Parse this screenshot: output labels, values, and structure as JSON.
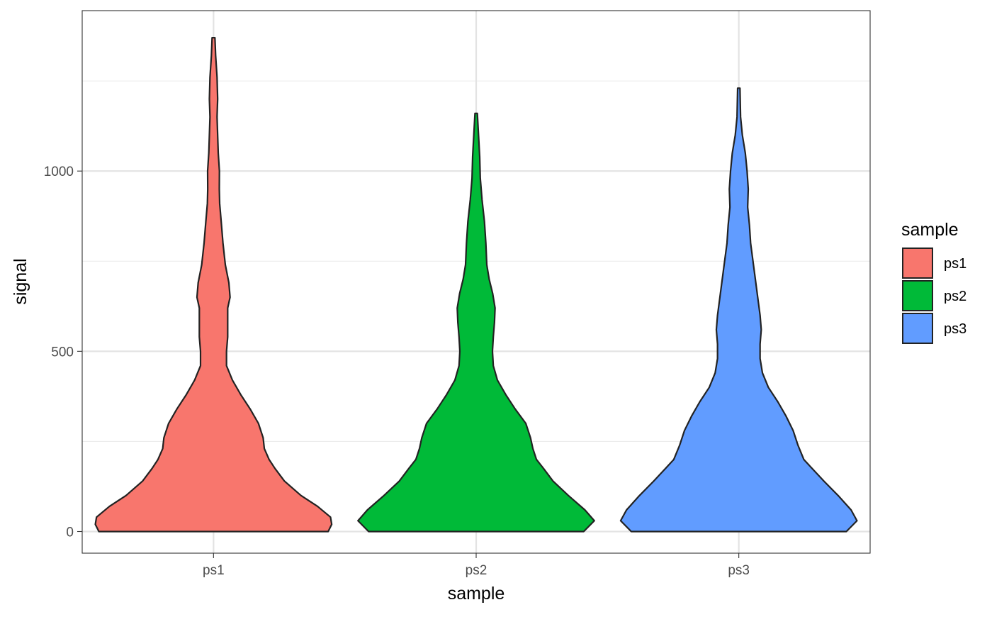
{
  "chart_data": {
    "type": "violin",
    "xlabel": "sample",
    "ylabel": "signal",
    "categories": [
      "ps1",
      "ps2",
      "ps3"
    ],
    "ylim": [
      -60,
      1445
    ],
    "yticks": [
      0,
      500,
      1000
    ],
    "minor_yticks": [
      250,
      750,
      1250
    ],
    "grid": true,
    "legend": {
      "title": "sample",
      "position": "right",
      "entries": [
        "ps1",
        "ps2",
        "ps3"
      ]
    },
    "colors": {
      "ps1": "#F8766D",
      "ps2": "#00BA38",
      "ps3": "#619CFF"
    },
    "series": [
      {
        "name": "ps1",
        "min": 0,
        "max": 1370,
        "density_profile": [
          [
            0,
            0.97
          ],
          [
            20,
            1.0
          ],
          [
            40,
            0.99
          ],
          [
            70,
            0.88
          ],
          [
            100,
            0.74
          ],
          [
            140,
            0.6
          ],
          [
            175,
            0.52
          ],
          [
            200,
            0.47
          ],
          [
            230,
            0.43
          ],
          [
            260,
            0.42
          ],
          [
            300,
            0.38
          ],
          [
            340,
            0.31
          ],
          [
            380,
            0.23
          ],
          [
            420,
            0.16
          ],
          [
            460,
            0.11
          ],
          [
            500,
            0.11
          ],
          [
            540,
            0.12
          ],
          [
            580,
            0.12
          ],
          [
            620,
            0.12
          ],
          [
            650,
            0.14
          ],
          [
            690,
            0.13
          ],
          [
            740,
            0.1
          ],
          [
            800,
            0.08
          ],
          [
            860,
            0.065
          ],
          [
            910,
            0.052
          ],
          [
            950,
            0.049
          ],
          [
            1000,
            0.05
          ],
          [
            1050,
            0.04
          ],
          [
            1100,
            0.035
          ],
          [
            1150,
            0.03
          ],
          [
            1200,
            0.035
          ],
          [
            1260,
            0.03
          ],
          [
            1320,
            0.018
          ],
          [
            1370,
            0.012
          ]
        ]
      },
      {
        "name": "ps2",
        "min": 0,
        "max": 1160,
        "density_profile": [
          [
            0,
            0.91
          ],
          [
            30,
            1.0
          ],
          [
            60,
            0.92
          ],
          [
            100,
            0.78
          ],
          [
            140,
            0.65
          ],
          [
            175,
            0.57
          ],
          [
            200,
            0.51
          ],
          [
            230,
            0.48
          ],
          [
            260,
            0.46
          ],
          [
            300,
            0.42
          ],
          [
            340,
            0.33
          ],
          [
            380,
            0.25
          ],
          [
            420,
            0.18
          ],
          [
            460,
            0.145
          ],
          [
            500,
            0.138
          ],
          [
            540,
            0.145
          ],
          [
            580,
            0.155
          ],
          [
            620,
            0.16
          ],
          [
            660,
            0.14
          ],
          [
            700,
            0.11
          ],
          [
            740,
            0.09
          ],
          [
            800,
            0.082
          ],
          [
            860,
            0.07
          ],
          [
            920,
            0.05
          ],
          [
            980,
            0.035
          ],
          [
            1040,
            0.03
          ],
          [
            1100,
            0.02
          ],
          [
            1160,
            0.01
          ]
        ]
      },
      {
        "name": "ps3",
        "min": 0,
        "max": 1230,
        "density_profile": [
          [
            0,
            0.91
          ],
          [
            30,
            1.0
          ],
          [
            60,
            0.95
          ],
          [
            100,
            0.84
          ],
          [
            140,
            0.72
          ],
          [
            175,
            0.62
          ],
          [
            200,
            0.55
          ],
          [
            240,
            0.5
          ],
          [
            280,
            0.46
          ],
          [
            320,
            0.4
          ],
          [
            360,
            0.33
          ],
          [
            400,
            0.25
          ],
          [
            440,
            0.2
          ],
          [
            480,
            0.18
          ],
          [
            520,
            0.18
          ],
          [
            560,
            0.19
          ],
          [
            600,
            0.18
          ],
          [
            650,
            0.16
          ],
          [
            700,
            0.14
          ],
          [
            750,
            0.12
          ],
          [
            800,
            0.1
          ],
          [
            850,
            0.09
          ],
          [
            900,
            0.075
          ],
          [
            950,
            0.08
          ],
          [
            1000,
            0.07
          ],
          [
            1050,
            0.055
          ],
          [
            1100,
            0.03
          ],
          [
            1150,
            0.015
          ],
          [
            1230,
            0.01
          ]
        ]
      }
    ]
  }
}
